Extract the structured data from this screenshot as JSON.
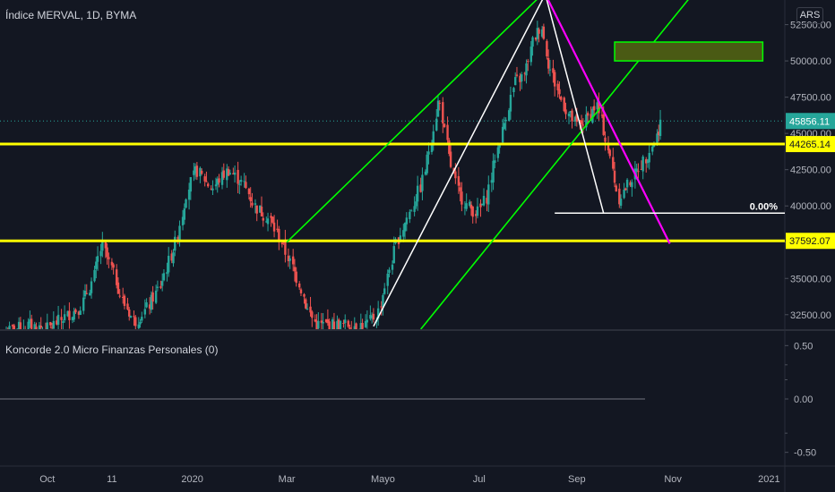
{
  "header": {
    "symbol_title": "Índice MERVAL, 1D, BYMA",
    "currency": "ARS"
  },
  "indicator": {
    "title": "Koncorde 2.0 Micro Finanzas Personales (0)"
  },
  "colors": {
    "background": "#131722",
    "up": "#26a69a",
    "down": "#ef5350",
    "support": "#ffff00",
    "channel": "#00ff00",
    "triangle": "#ffffff",
    "trendline": "#ff00ff",
    "last_price": "#26a69a"
  },
  "chart_data": {
    "type": "candlestick",
    "y_axis_ticks": [
      "52500.00",
      "50000.00",
      "47500.00",
      "45000.00",
      "42500.00",
      "40000.00",
      "37500.00",
      "35000.00",
      "32500.00"
    ],
    "ylim": [
      31500,
      54200
    ],
    "x_axis_ticks": [
      "Oct",
      "11",
      "2020",
      "Mar",
      "Mayo",
      "Jul",
      "Sep",
      "Nov",
      "2021"
    ],
    "price_labels": [
      {
        "value": 45856.11,
        "text": "45856.11",
        "kind": "last"
      },
      {
        "value": 44265.14,
        "text": "44265.14",
        "kind": "level"
      },
      {
        "value": 37592.07,
        "text": "37592.07",
        "kind": "level"
      }
    ],
    "horizontal_levels": [
      44265.14,
      37592.07
    ],
    "fib_label": "0.00%",
    "fib_level": 39500,
    "target_box": {
      "price_low": 50000,
      "price_high": 51300,
      "date_from": "2020-09-25",
      "date_to": "2020-12-28"
    },
    "close_series": [
      [
        "2019-09-05",
        31300
      ],
      [
        "2019-09-20",
        31800
      ],
      [
        "2019-10-01",
        31500
      ],
      [
        "2019-10-12",
        32300
      ],
      [
        "2019-10-22",
        33000
      ],
      [
        "2019-10-30",
        34800
      ],
      [
        "2019-11-05",
        37300
      ],
      [
        "2019-11-12",
        35500
      ],
      [
        "2019-11-18",
        33500
      ],
      [
        "2019-11-26",
        32000
      ],
      [
        "2019-12-04",
        33000
      ],
      [
        "2019-12-12",
        34500
      ],
      [
        "2019-12-22",
        37500
      ],
      [
        "2019-12-29",
        41000
      ],
      [
        "2020-01-04",
        42500
      ],
      [
        "2020-01-14",
        41200
      ],
      [
        "2020-01-24",
        42500
      ],
      [
        "2020-02-03",
        41500
      ],
      [
        "2020-02-10",
        40000
      ],
      [
        "2020-02-20",
        39000
      ],
      [
        "2020-02-27",
        37500
      ],
      [
        "2020-03-04",
        36000
      ],
      [
        "2020-03-10",
        34500
      ],
      [
        "2020-03-14",
        33000
      ],
      [
        "2020-03-20",
        31800
      ],
      [
        "2020-04-20",
        31800
      ],
      [
        "2020-04-28",
        32500
      ],
      [
        "2020-05-04",
        35000
      ],
      [
        "2020-05-10",
        37500
      ],
      [
        "2020-05-18",
        39500
      ],
      [
        "2020-05-26",
        41500
      ],
      [
        "2020-06-01",
        44500
      ],
      [
        "2020-06-06",
        47500
      ],
      [
        "2020-06-12",
        43500
      ],
      [
        "2020-06-18",
        41000
      ],
      [
        "2020-06-24",
        40000
      ],
      [
        "2020-06-30",
        39500
      ],
      [
        "2020-07-06",
        40500
      ],
      [
        "2020-07-12",
        43500
      ],
      [
        "2020-07-18",
        46000
      ],
      [
        "2020-07-24",
        48500
      ],
      [
        "2020-07-30",
        49000
      ],
      [
        "2020-08-05",
        51500
      ],
      [
        "2020-08-10",
        52500
      ],
      [
        "2020-08-14",
        50000
      ],
      [
        "2020-08-20",
        48000
      ],
      [
        "2020-08-26",
        46500
      ],
      [
        "2020-09-02",
        45500
      ],
      [
        "2020-09-08",
        46000
      ],
      [
        "2020-09-14",
        47000
      ],
      [
        "2020-09-19",
        45000
      ],
      [
        "2020-09-24",
        42500
      ],
      [
        "2020-09-28",
        40500
      ],
      [
        "2020-10-04",
        41500
      ],
      [
        "2020-10-10",
        42500
      ],
      [
        "2020-10-16",
        43500
      ],
      [
        "2020-10-21",
        44500
      ],
      [
        "2020-10-25",
        45856.11
      ]
    ],
    "indicator_y_ticks": [
      "0.50",
      "0.00",
      "-0.50"
    ]
  }
}
